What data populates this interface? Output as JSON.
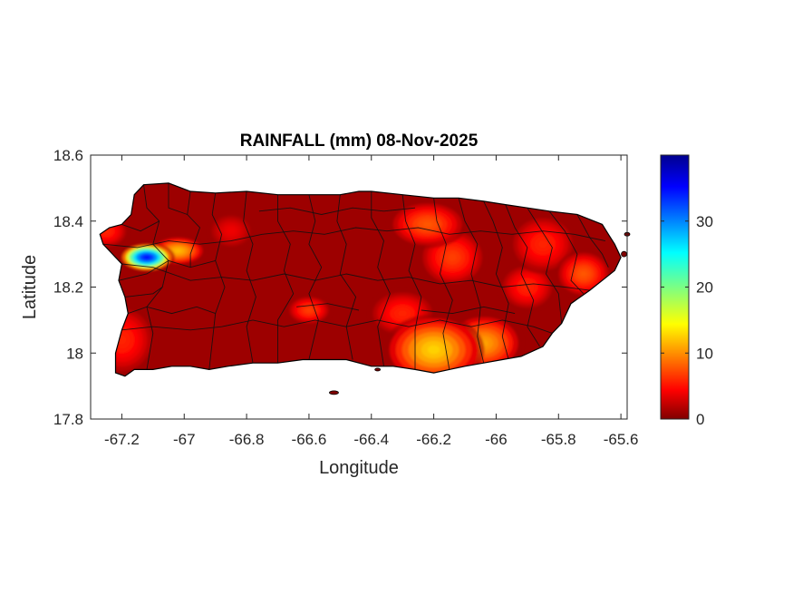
{
  "chart_data": {
    "type": "heatmap",
    "title": "RAINFALL (mm) 08-Nov-2025",
    "xlabel": "Longitude",
    "ylabel": "Latitude",
    "xlim": [
      -67.3,
      -65.58
    ],
    "ylim": [
      17.8,
      18.6
    ],
    "xticks": [
      -67.2,
      -67,
      -66.8,
      -66.6,
      -66.4,
      -66.2,
      -66,
      -65.8,
      -65.6
    ],
    "xtick_labels": [
      "-67.2",
      "-67",
      "-66.8",
      "-66.6",
      "-66.4",
      "-66.2",
      "-66",
      "-65.8",
      "-65.6"
    ],
    "yticks": [
      17.8,
      18,
      18.2,
      18.4,
      18.6
    ],
    "ytick_labels": [
      "17.8",
      "18",
      "18.2",
      "18.4",
      "18.6"
    ],
    "colorbar": {
      "colormap": "jet",
      "range": [
        0,
        40
      ],
      "ticks": [
        0,
        10,
        20,
        30
      ],
      "tick_labels": [
        "0",
        "10",
        "20",
        "30"
      ]
    },
    "background_value_mm": 1,
    "rainfall_hotspots": [
      {
        "lon": -67.12,
        "lat": 18.29,
        "value_mm": 36,
        "sx": 0.05,
        "sy": 0.025
      },
      {
        "lon": -67.02,
        "lat": 18.31,
        "value_mm": 12,
        "sx": 0.05,
        "sy": 0.025
      },
      {
        "lon": -66.2,
        "lat": 18.01,
        "value_mm": 13,
        "sx": 0.09,
        "sy": 0.06
      },
      {
        "lon": -66.04,
        "lat": 18.03,
        "value_mm": 11,
        "sx": 0.07,
        "sy": 0.05
      },
      {
        "lon": -66.22,
        "lat": 18.39,
        "value_mm": 8,
        "sx": 0.07,
        "sy": 0.04
      },
      {
        "lon": -66.14,
        "lat": 18.29,
        "value_mm": 7,
        "sx": 0.06,
        "sy": 0.05
      },
      {
        "lon": -66.3,
        "lat": 18.12,
        "value_mm": 6,
        "sx": 0.06,
        "sy": 0.04
      },
      {
        "lon": -66.6,
        "lat": 18.13,
        "value_mm": 7,
        "sx": 0.04,
        "sy": 0.025
      },
      {
        "lon": -65.9,
        "lat": 18.2,
        "value_mm": 6,
        "sx": 0.05,
        "sy": 0.04
      },
      {
        "lon": -65.72,
        "lat": 18.24,
        "value_mm": 8,
        "sx": 0.05,
        "sy": 0.04
      },
      {
        "lon": -65.85,
        "lat": 18.33,
        "value_mm": 6,
        "sx": 0.06,
        "sy": 0.05
      },
      {
        "lon": -67.2,
        "lat": 18.04,
        "value_mm": 6,
        "sx": 0.06,
        "sy": 0.06
      },
      {
        "lon": -67.25,
        "lat": 18.37,
        "value_mm": 6,
        "sx": 0.04,
        "sy": 0.03
      },
      {
        "lon": -66.85,
        "lat": 18.37,
        "value_mm": 4,
        "sx": 0.04,
        "sy": 0.03
      }
    ]
  }
}
